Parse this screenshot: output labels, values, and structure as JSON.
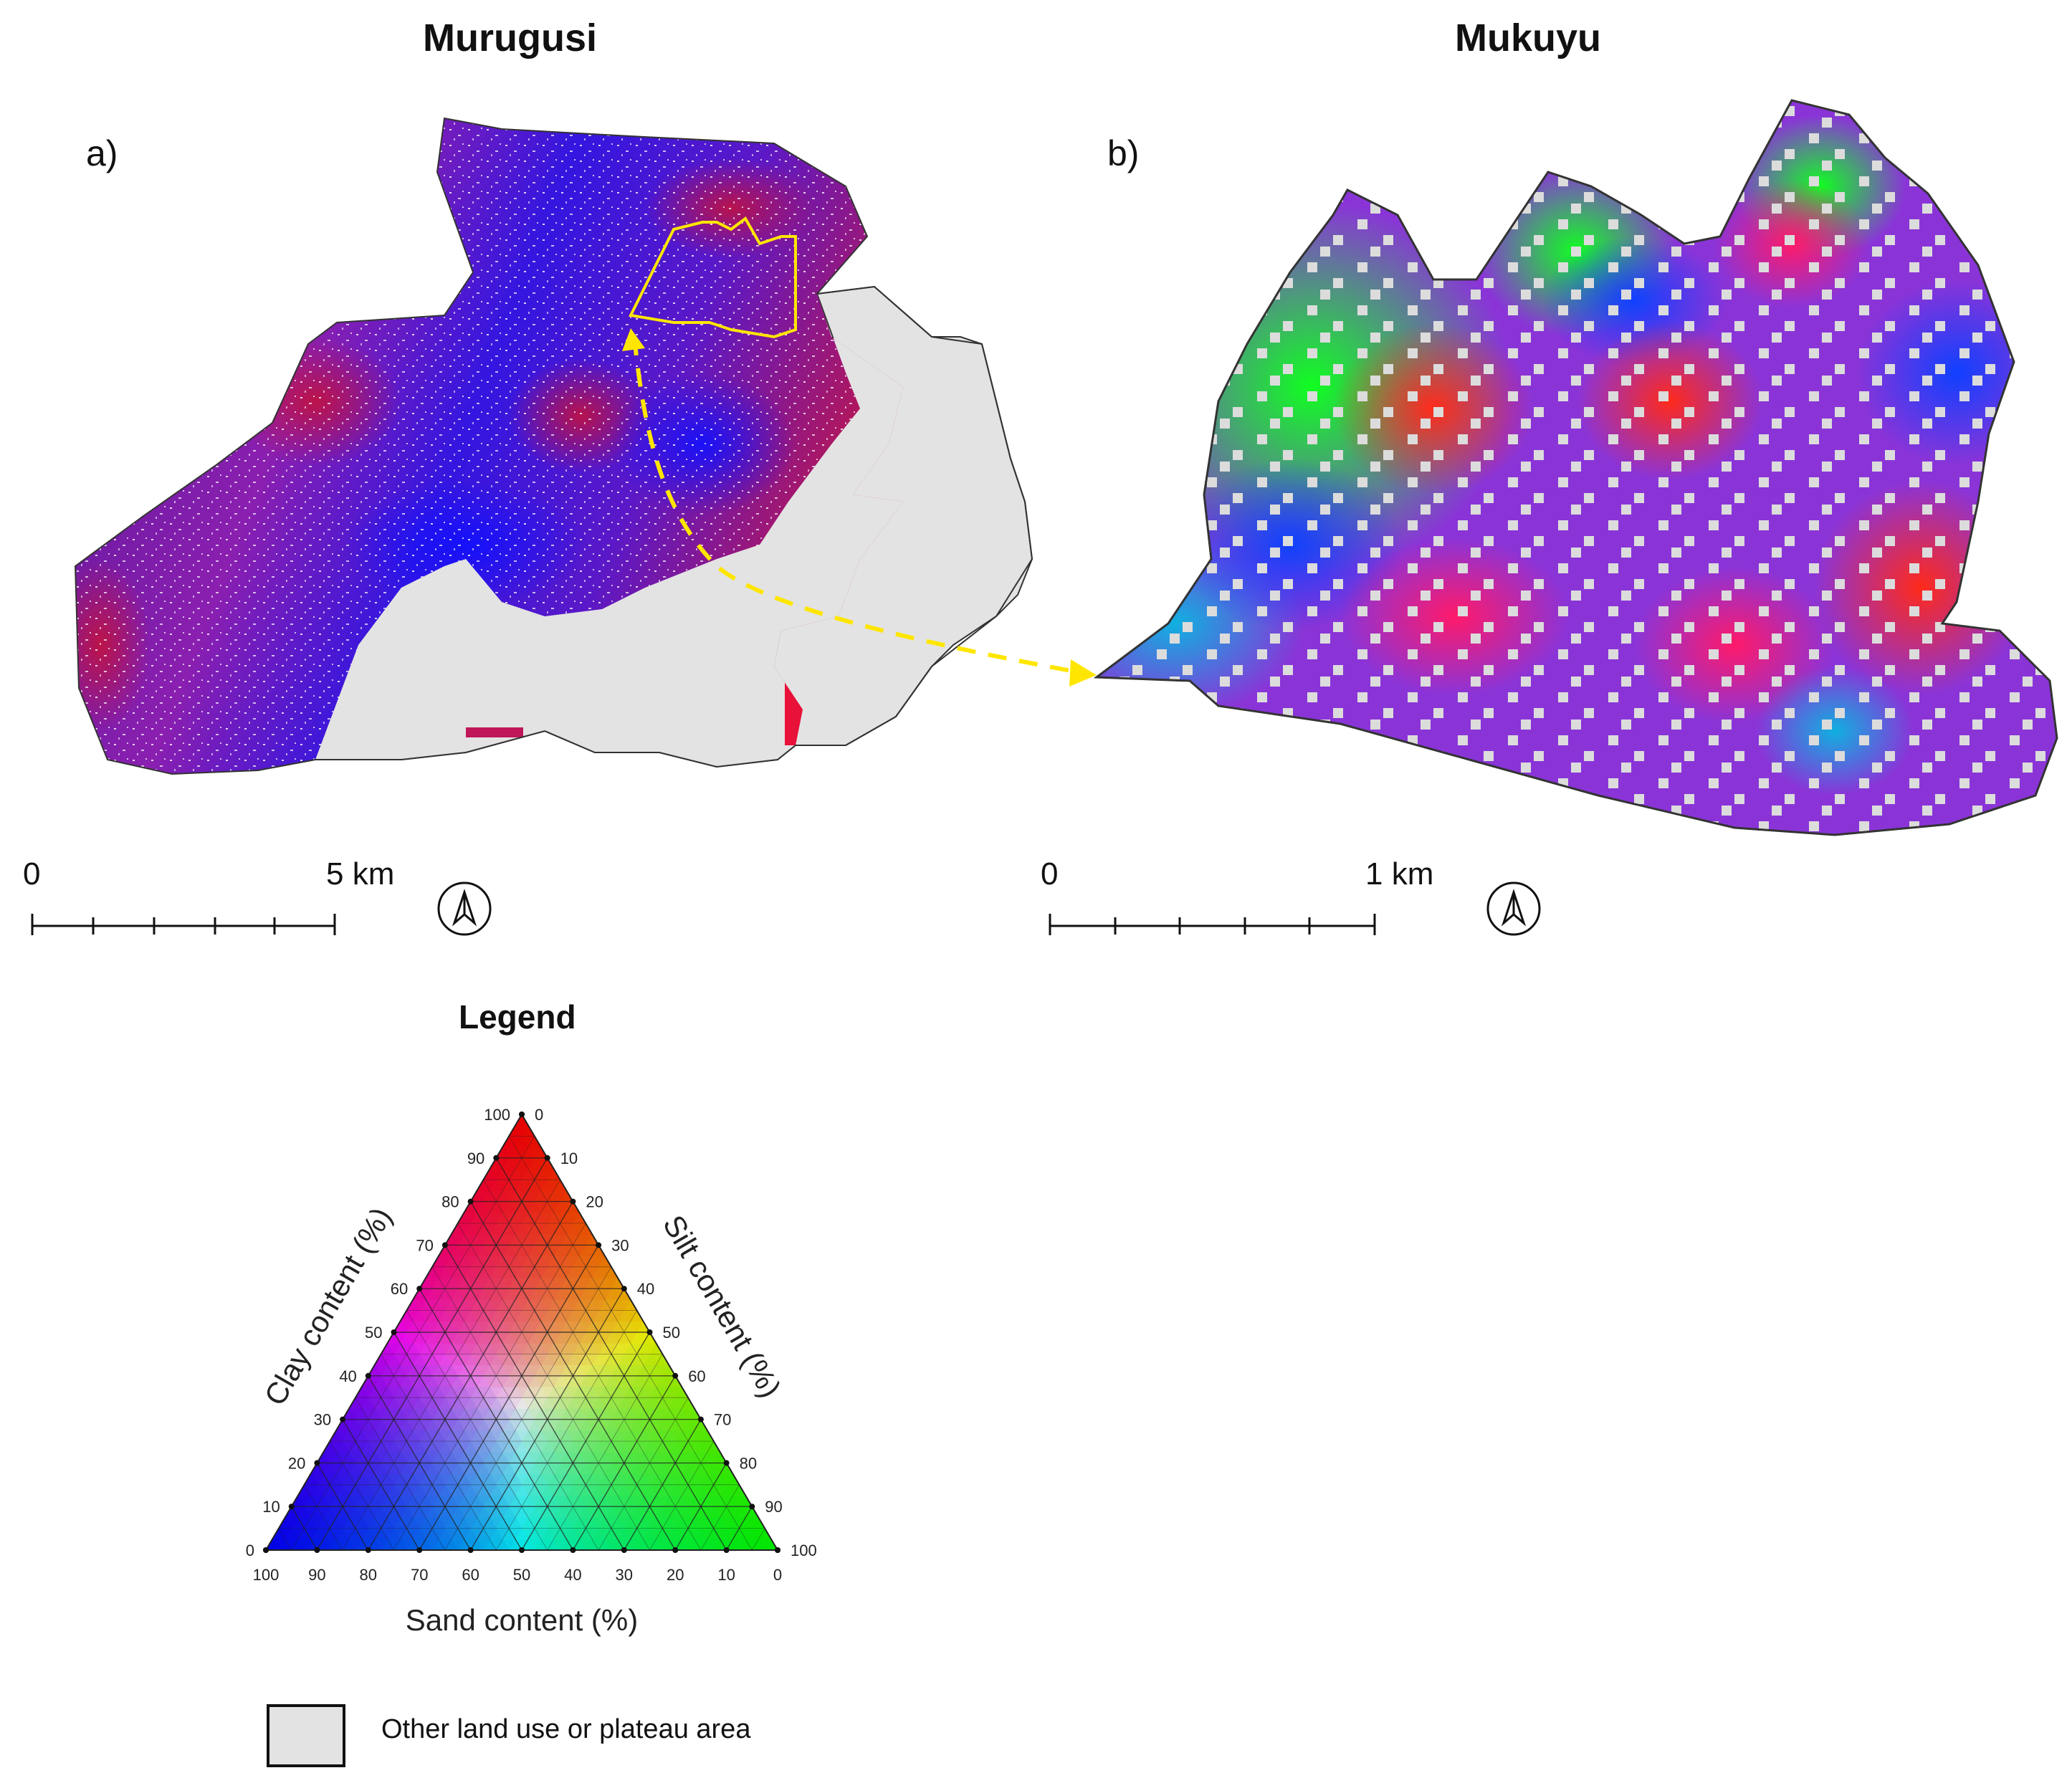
{
  "maps": [
    {
      "id": "a",
      "title": "Murugusi",
      "panel_label": "a)",
      "scale": {
        "start": "0",
        "end": "5 km"
      }
    },
    {
      "id": "b",
      "title": "Mukuyu",
      "panel_label": "b)",
      "scale": {
        "start": "0",
        "end": "1 km"
      }
    }
  ],
  "icons": {
    "north_arrow": "north-arrow-icon"
  },
  "colors": {
    "clay": "#ff0000",
    "silt": "#00ff00",
    "sand": "#0000ff",
    "no_data": "#e3e3e3",
    "locator": "#ffe600"
  },
  "legend": {
    "title": "Legend",
    "ternary": {
      "left_axis_title": "Clay content (%)",
      "right_axis_title": "Silt content (%)",
      "bottom_axis_title": "Sand content (%)",
      "left_ticks": [
        "0",
        "10",
        "20",
        "30",
        "40",
        "50",
        "60",
        "70",
        "80",
        "90",
        "100"
      ],
      "right_ticks": [
        "0",
        "10",
        "20",
        "30",
        "40",
        "50",
        "60",
        "70",
        "80",
        "90",
        "100"
      ],
      "bottom_ticks": [
        "100",
        "90",
        "80",
        "70",
        "60",
        "50",
        "40",
        "30",
        "20",
        "10",
        "0"
      ]
    },
    "items": [
      {
        "label": "Other land use or plateau area"
      }
    ]
  }
}
